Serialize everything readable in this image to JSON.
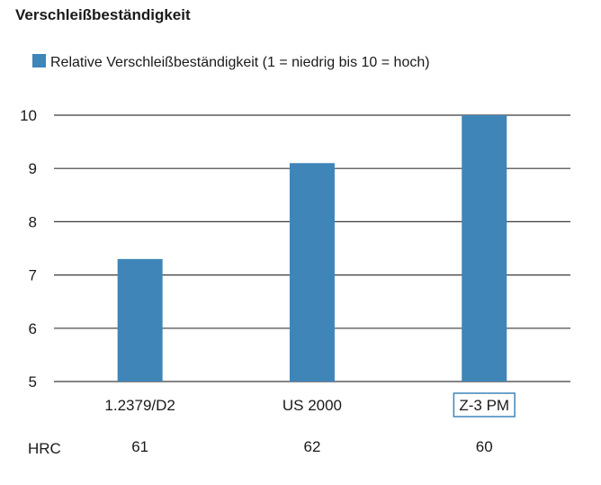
{
  "title": "Verschleißbeständigkeit",
  "colors": {
    "bar": "#3f85b8",
    "grid": "#3a3a3a",
    "text": "#1a1a1a",
    "highlight_box": "#3f85b8"
  },
  "chart_data": {
    "type": "bar",
    "title": "Verschleißbeständigkeit",
    "xlabel": "",
    "ylabel": "",
    "ylim": [
      5,
      10
    ],
    "yticks": [
      5,
      6,
      7,
      8,
      9,
      10
    ],
    "grid": true,
    "legend_position": "top-left",
    "categories": [
      "1.2379/D2",
      "US 2000",
      "Z-3 PM"
    ],
    "highlighted_category": "Z-3 PM",
    "series": [
      {
        "name": "Relative Verschleißbeständigkeit (1 = niedrig bis 10 = hoch)",
        "values": [
          7.3,
          9.1,
          10
        ]
      }
    ],
    "extra_row": {
      "label": "HRC",
      "values": [
        "61",
        "62",
        "60"
      ]
    }
  }
}
